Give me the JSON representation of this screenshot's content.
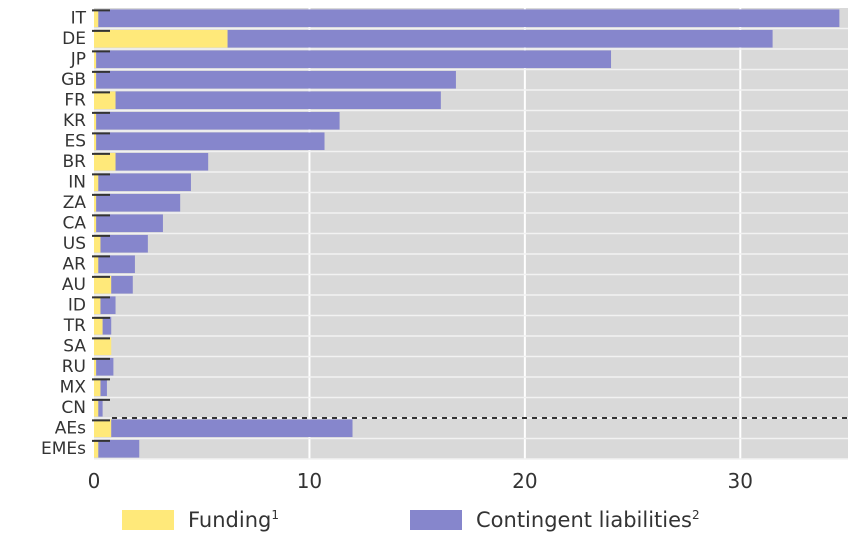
{
  "chart_data": {
    "type": "bar",
    "stacked": true,
    "orientation": "horizontal",
    "categories": [
      "IT",
      "DE",
      "JP",
      "GB",
      "FR",
      "KR",
      "ES",
      "BR",
      "IN",
      "ZA",
      "CA",
      "US",
      "AR",
      "AU",
      "ID",
      "TR",
      "SA",
      "RU",
      "MX",
      "CN",
      "AEs",
      "EMEs"
    ],
    "series": [
      {
        "name": "Funding",
        "color": "#ffe97a",
        "values": [
          0.2,
          6.2,
          0.1,
          0.1,
          1.0,
          0.1,
          0.1,
          1.0,
          0.2,
          0.1,
          0.1,
          0.3,
          0.2,
          0.8,
          0.3,
          0.4,
          0.8,
          0.1,
          0.3,
          0.2,
          0.8,
          0.2
        ]
      },
      {
        "name": "Contingent liabilities",
        "color": "#8686cc",
        "values": [
          34.4,
          25.3,
          23.9,
          16.7,
          15.1,
          11.3,
          10.6,
          4.3,
          4.3,
          3.9,
          3.1,
          2.2,
          1.7,
          1.0,
          0.7,
          0.4,
          0.0,
          0.8,
          0.3,
          0.2,
          11.2,
          1.9
        ]
      }
    ],
    "xlim": [
      0,
      35
    ],
    "xticks": [
      "0",
      "10",
      "20",
      "30"
    ],
    "grid": "vertical",
    "legend_position": "bottom",
    "separator_before": "AEs",
    "legend": {
      "funding_label": "Funding",
      "funding_note": "1",
      "contingent_label": "Contingent liabilities",
      "contingent_note": "2"
    }
  }
}
